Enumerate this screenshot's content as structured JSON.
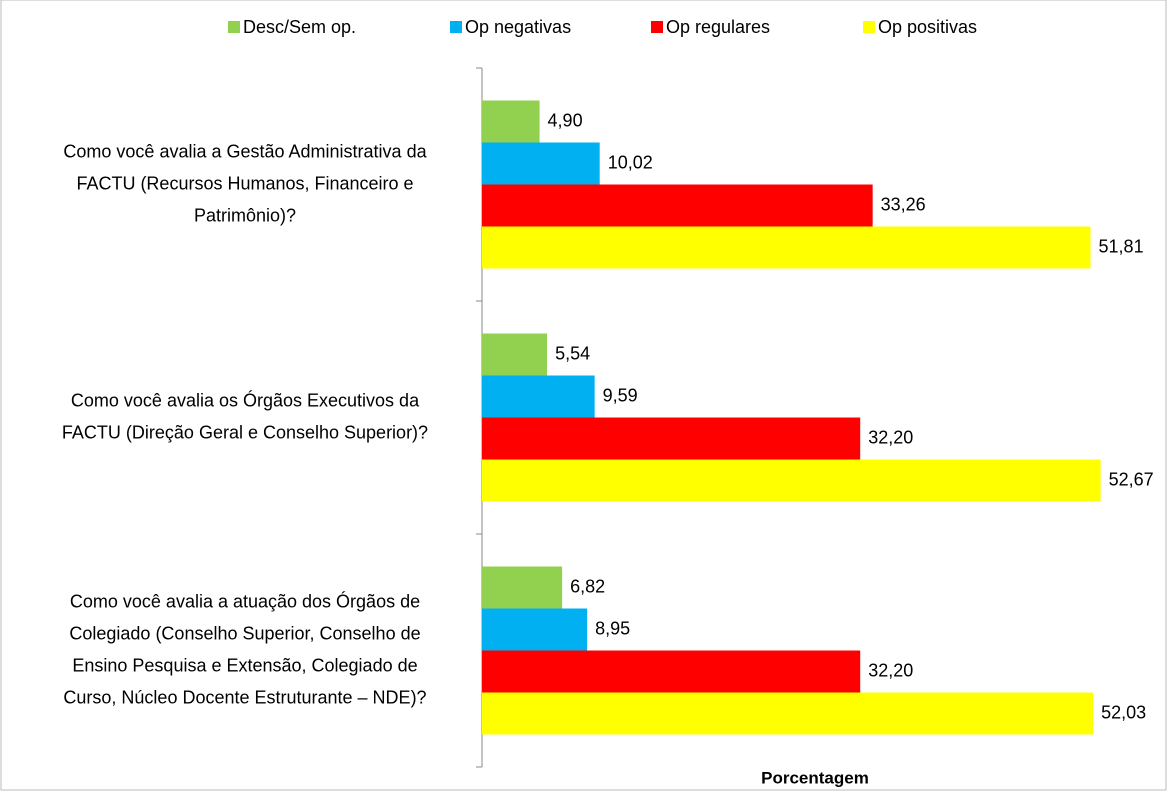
{
  "chart_data": {
    "type": "hbar",
    "categories": [
      [
        "Como você avalia a Gestão Administrativa da",
        "FACTU (Recursos Humanos, Financeiro e",
        "Patrimônio)?"
      ],
      [
        "Como você avalia os Órgãos Executivos da",
        "FACTU (Direção Geral e Conselho Superior)?"
      ],
      [
        "Como você avalia a atuação dos Órgãos de",
        "Colegiado (Conselho Superior, Conselho de",
        "Ensino Pesquisa e Extensão, Colegiado de",
        "Curso, Núcleo Docente Estruturante – NDE)?"
      ]
    ],
    "series": [
      {
        "name": "Desc/Sem op.",
        "color": "#92d050",
        "values": [
          4.9,
          5.54,
          6.82
        ],
        "value_labels": [
          "4,90",
          "5,54",
          "6,82"
        ]
      },
      {
        "name": "Op negativas",
        "color": "#00b0f0",
        "values": [
          10.02,
          9.59,
          8.95
        ],
        "value_labels": [
          "10,02",
          "9,59",
          "8,95"
        ]
      },
      {
        "name": "Op regulares",
        "color": "#ff0000",
        "values": [
          33.26,
          32.2,
          32.2
        ],
        "value_labels": [
          "33,26",
          "32,20",
          "32,20"
        ]
      },
      {
        "name": "Op positivas",
        "color": "#ffff00",
        "values": [
          51.81,
          52.67,
          52.03
        ],
        "value_labels": [
          "51,81",
          "52,67",
          "52,03"
        ]
      }
    ],
    "xlabel": "Porcentagem",
    "xlim": [
      0,
      55
    ],
    "legend": "top"
  }
}
